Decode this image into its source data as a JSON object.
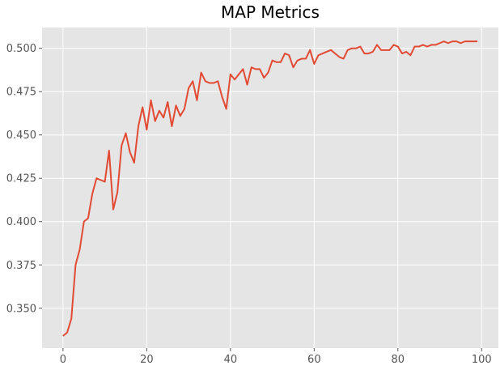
{
  "chart_data": {
    "type": "line",
    "title": "MAP Metrics",
    "xlabel": "",
    "ylabel": "",
    "xlim": [
      -5,
      104
    ],
    "ylim": [
      0.327,
      0.512
    ],
    "x_ticks": [
      0,
      20,
      40,
      60,
      80,
      100
    ],
    "y_ticks": [
      0.35,
      0.375,
      0.4,
      0.425,
      0.45,
      0.475,
      0.5
    ],
    "y_tick_labels": [
      "0.350",
      "0.375",
      "0.400",
      "0.425",
      "0.450",
      "0.475",
      "0.500"
    ],
    "grid": true,
    "series": [
      {
        "name": "",
        "color": "#E24A33",
        "x": [
          0,
          1,
          2,
          3,
          4,
          5,
          6,
          7,
          8,
          9,
          10,
          11,
          12,
          13,
          14,
          15,
          16,
          17,
          18,
          19,
          20,
          21,
          22,
          23,
          24,
          25,
          26,
          27,
          28,
          29,
          30,
          31,
          32,
          33,
          34,
          35,
          36,
          37,
          38,
          39,
          40,
          41,
          42,
          43,
          44,
          45,
          46,
          47,
          48,
          49,
          50,
          51,
          52,
          53,
          54,
          55,
          56,
          57,
          58,
          59,
          60,
          61,
          62,
          63,
          64,
          65,
          66,
          67,
          68,
          69,
          70,
          71,
          72,
          73,
          74,
          75,
          76,
          77,
          78,
          79,
          80,
          81,
          82,
          83,
          84,
          85,
          86,
          87,
          88,
          89,
          90,
          91,
          92,
          93,
          94,
          95,
          96,
          97,
          98,
          99
        ],
        "values": [
          0.334,
          0.336,
          0.344,
          0.375,
          0.384,
          0.4,
          0.402,
          0.416,
          0.425,
          0.424,
          0.423,
          0.441,
          0.407,
          0.417,
          0.444,
          0.451,
          0.44,
          0.434,
          0.455,
          0.466,
          0.453,
          0.47,
          0.458,
          0.464,
          0.46,
          0.469,
          0.455,
          0.467,
          0.461,
          0.465,
          0.477,
          0.481,
          0.47,
          0.486,
          0.481,
          0.48,
          0.48,
          0.481,
          0.472,
          0.465,
          0.485,
          0.482,
          0.485,
          0.488,
          0.479,
          0.489,
          0.488,
          0.488,
          0.483,
          0.486,
          0.493,
          0.492,
          0.492,
          0.497,
          0.496,
          0.489,
          0.493,
          0.494,
          0.494,
          0.499,
          0.491,
          0.496,
          0.497,
          0.498,
          0.499,
          0.497,
          0.495,
          0.494,
          0.499,
          0.5,
          0.5,
          0.501,
          0.497,
          0.497,
          0.498,
          0.502,
          0.499,
          0.499,
          0.499,
          0.502,
          0.501,
          0.497,
          0.498,
          0.496,
          0.501,
          0.501,
          0.502,
          0.501,
          0.502,
          0.502,
          0.503,
          0.504,
          0.503,
          0.504,
          0.504,
          0.503,
          0.504,
          0.504,
          0.504,
          0.504
        ]
      }
    ]
  }
}
